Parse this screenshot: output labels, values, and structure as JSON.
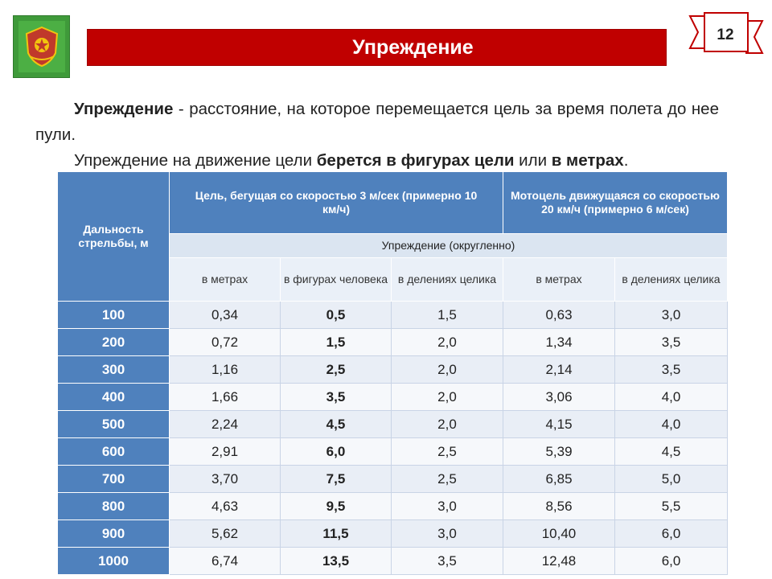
{
  "slide": {
    "title": "Упреждение",
    "page_number": "12"
  },
  "text": {
    "p1_bold": "Упреждение",
    "p1_rest": " - расстояние, на которое перемещается цель за время полета до нее пули.",
    "p2_start": "Упреждение на движение цели ",
    "p2_bold1": "берется в фигурах цели",
    "p2_mid": " или ",
    "p2_bold2": "в метрах",
    "p2_end": "."
  },
  "table": {
    "col_distance": "Дальность стрельбы, м",
    "group_running": "Цель, бегущая со скоростью 3 м/сек (примерно 10 км/ч)",
    "group_moto": "Мотоцель движущаяся со скоростью 20 км/ч (примерно 6 м/сек)",
    "lead_caption": "Упреждение (округленно)",
    "subheaders": [
      "в метрах",
      "в фигурах человека",
      "в делениях целика",
      "в метрах",
      "в делениях целика"
    ],
    "rows": [
      [
        "100",
        "0,34",
        "0,5",
        "1,5",
        "0,63",
        "3,0"
      ],
      [
        "200",
        "0,72",
        "1,5",
        "2,0",
        "1,34",
        "3,5"
      ],
      [
        "300",
        "1,16",
        "2,5",
        "2,0",
        "2,14",
        "3,5"
      ],
      [
        "400",
        "1,66",
        "3,5",
        "2,0",
        "3,06",
        "4,0"
      ],
      [
        "500",
        "2,24",
        "4,5",
        "2,0",
        "4,15",
        "4,0"
      ],
      [
        "600",
        "2,91",
        "6,0",
        "2,5",
        "5,39",
        "4,5"
      ],
      [
        "700",
        "3,70",
        "7,5",
        "2,5",
        "6,85",
        "5,0"
      ],
      [
        "800",
        "4,63",
        "9,5",
        "3,0",
        "8,56",
        "5,5"
      ],
      [
        "900",
        "5,62",
        "11,5",
        "3,0",
        "10,40",
        "6,0"
      ],
      [
        "1000",
        "6,74",
        "13,5",
        "3,5",
        "12,48",
        "6,0"
      ]
    ]
  },
  "icons": {
    "emblem": "academy-emblem-icon",
    "badge": "ribbon-badge-icon"
  },
  "colors": {
    "title_bar": "#c00000",
    "header_blue": "#4f81bd",
    "emblem_green": "#3f9a3a"
  }
}
